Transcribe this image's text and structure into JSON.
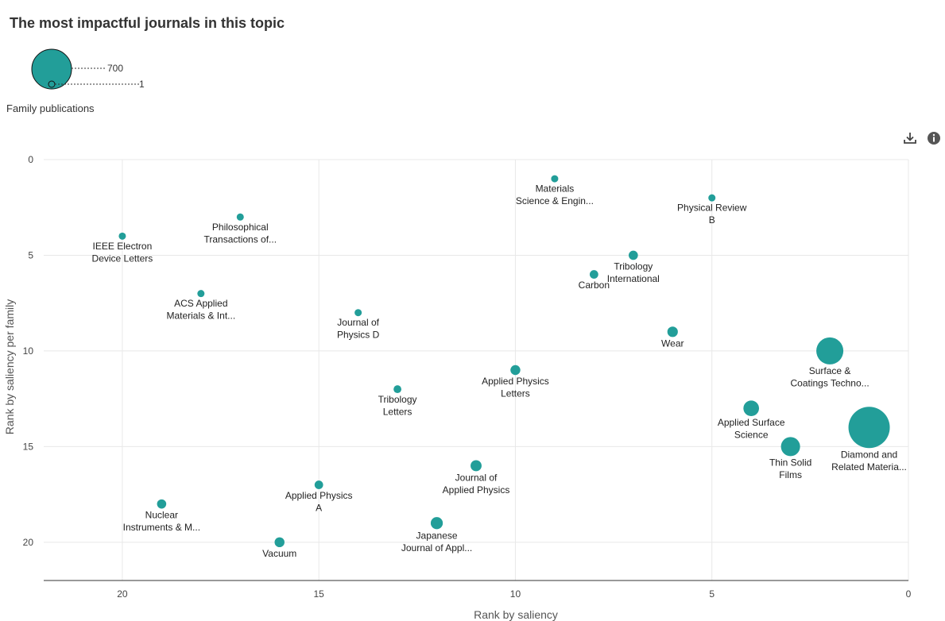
{
  "title": "The most impactful journals in this topic",
  "size_legend": {
    "caption": "Family publications",
    "max_label": "700",
    "min_label": "1"
  },
  "toolbar": {
    "download_icon": "download-icon",
    "info_icon": "info-icon"
  },
  "colors": {
    "bubble": "#229e99",
    "axis": "#333333",
    "grid": "#e8e8e8"
  },
  "chart_data": {
    "type": "scatter",
    "xlabel": "Rank by saliency",
    "ylabel": "Rank by saliency per family",
    "xlim": [
      22,
      0
    ],
    "ylim": [
      0,
      22
    ],
    "x_reversed": true,
    "y_reversed": true,
    "x_ticks": [
      20,
      15,
      10,
      5,
      0
    ],
    "y_ticks": [
      0,
      5,
      10,
      15,
      20
    ],
    "grid": true,
    "size_encoding": "Family publications",
    "points": [
      {
        "name": "Materials Science & Engin...",
        "lines": [
          "Materials",
          "Science & Engin..."
        ],
        "x": 9,
        "y": 1,
        "size": 5
      },
      {
        "name": "Physical Review B",
        "lines": [
          "Physical Review",
          "B"
        ],
        "x": 5,
        "y": 2,
        "size": 8
      },
      {
        "name": "Philosophical Transactions of...",
        "lines": [
          "Philosophical",
          "Transactions of..."
        ],
        "x": 17,
        "y": 3,
        "size": 7
      },
      {
        "name": "IEEE Electron Device Letters",
        "lines": [
          "IEEE Electron",
          "Device Letters"
        ],
        "x": 20,
        "y": 4,
        "size": 15
      },
      {
        "name": "Tribology International",
        "lines": [
          "Tribology",
          "International"
        ],
        "x": 7,
        "y": 5,
        "size": 35
      },
      {
        "name": "Carbon",
        "lines": [
          "Carbon"
        ],
        "x": 8,
        "y": 6,
        "size": 30
      },
      {
        "name": "ACS Applied Materials & Int...",
        "lines": [
          "ACS Applied",
          "Materials & Int..."
        ],
        "x": 18,
        "y": 7,
        "size": 18
      },
      {
        "name": "Journal of Physics D",
        "lines": [
          "Journal of",
          "Physics D"
        ],
        "x": 14,
        "y": 8,
        "size": 18
      },
      {
        "name": "Wear",
        "lines": [
          "Wear"
        ],
        "x": 6,
        "y": 9,
        "size": 45
      },
      {
        "name": "Surface & Coatings Techno...",
        "lines": [
          "Surface &",
          "Coatings Techno..."
        ],
        "x": 2,
        "y": 10,
        "size": 300
      },
      {
        "name": "Applied Physics Letters",
        "lines": [
          "Applied Physics",
          "Letters"
        ],
        "x": 10,
        "y": 11,
        "size": 40
      },
      {
        "name": "Tribology Letters",
        "lines": [
          "Tribology",
          "Letters"
        ],
        "x": 13,
        "y": 12,
        "size": 25
      },
      {
        "name": "Applied Surface Science",
        "lines": [
          "Applied Surface",
          "Science"
        ],
        "x": 4,
        "y": 13,
        "size": 100
      },
      {
        "name": "Diamond and Related Materia...",
        "lines": [
          "Diamond and",
          "Related Materia..."
        ],
        "x": 1,
        "y": 14,
        "size": 700
      },
      {
        "name": "Thin Solid Films",
        "lines": [
          "Thin Solid",
          "Films"
        ],
        "x": 3,
        "y": 15,
        "size": 150
      },
      {
        "name": "Journal of Applied Physics",
        "lines": [
          "Journal of",
          "Applied Physics"
        ],
        "x": 11,
        "y": 16,
        "size": 50
      },
      {
        "name": "Applied Physics A",
        "lines": [
          "Applied Physics",
          "A"
        ],
        "x": 15,
        "y": 17,
        "size": 30
      },
      {
        "name": "Nuclear Instruments & M...",
        "lines": [
          "Nuclear",
          "Instruments & M..."
        ],
        "x": 19,
        "y": 18,
        "size": 35
      },
      {
        "name": "Japanese Journal of Appl...",
        "lines": [
          "Japanese",
          "Journal of Appl..."
        ],
        "x": 12,
        "y": 19,
        "size": 60
      },
      {
        "name": "Vacuum",
        "lines": [
          "Vacuum"
        ],
        "x": 16,
        "y": 20,
        "size": 40
      }
    ]
  }
}
